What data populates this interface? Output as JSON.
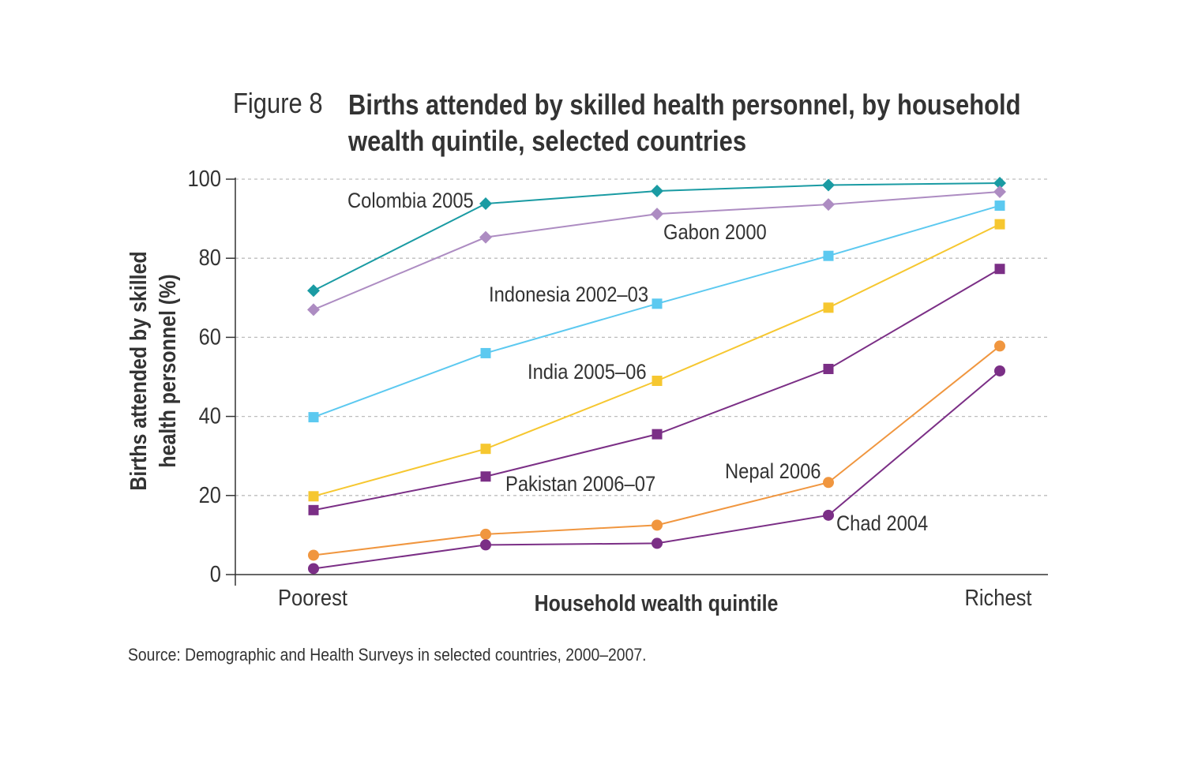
{
  "figure": {
    "label": "Figure 8",
    "title": "Births attended by skilled health personnel, by household wealth quintile, selected countries"
  },
  "source": "Source: Demographic and Health Surveys in selected countries, 2000–2007.",
  "chart_data": {
    "type": "line",
    "title": "Births attended by skilled health personnel, by household wealth quintile, selected countries",
    "xlabel": "Household wealth quintile",
    "ylabel": [
      "Births attended by skilled",
      "health personnel (%)"
    ],
    "x_tick_labels": [
      "Poorest",
      "",
      "",
      "",
      "Richest"
    ],
    "x": [
      1,
      2,
      3,
      4,
      5
    ],
    "ylim": [
      0,
      100
    ],
    "yticks": [
      0,
      20,
      40,
      60,
      80,
      100
    ],
    "grid": true,
    "series": [
      {
        "name": "Colombia 2005",
        "marker": "diamond",
        "color": "#1a9ba3",
        "values": [
          71.8,
          93.8,
          97.0,
          98.5,
          99.0
        ]
      },
      {
        "name": "Gabon 2000",
        "marker": "diamond",
        "color": "#ad8cc2",
        "values": [
          67.0,
          85.3,
          91.2,
          93.6,
          96.8
        ]
      },
      {
        "name": "Indonesia 2002–03",
        "marker": "square",
        "color": "#5cc9f0",
        "values": [
          39.8,
          56.0,
          68.5,
          80.6,
          93.3
        ]
      },
      {
        "name": "India 2005–06",
        "marker": "square",
        "color": "#f6c730",
        "values": [
          19.8,
          31.8,
          49.0,
          67.5,
          88.6
        ]
      },
      {
        "name": "Pakistan 2006–07",
        "marker": "square",
        "color": "#7b2f86",
        "values": [
          16.3,
          24.8,
          35.5,
          52.0,
          77.3
        ]
      },
      {
        "name": "Nepal 2006",
        "marker": "circle",
        "color": "#f0963f",
        "values": [
          4.9,
          10.2,
          12.5,
          23.3,
          57.8
        ]
      },
      {
        "name": "Chad 2004",
        "marker": "circle",
        "color": "#7b2f86",
        "values": [
          1.5,
          7.5,
          7.9,
          15.0,
          51.5
        ]
      }
    ]
  }
}
